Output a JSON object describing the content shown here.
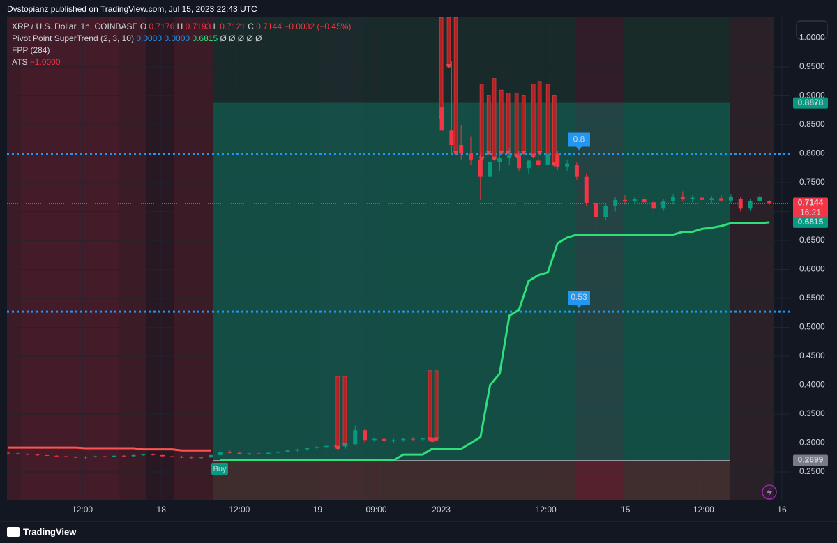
{
  "header": {
    "published": "Dvstopianz published on TradingView.com, Jul 15, 2023 22:43 UTC",
    "symbol": "XRP / U.S. Dollar, 1h, COINBASE",
    "o": "O",
    "h": "H",
    "l": "L",
    "c": "C",
    "change": "−0.0032 (−0.45%)",
    "indicator1": "Pivot Point SuperTrend (2, 3, 10)",
    "ind1_v1": "0.0000",
    "ind1_v2": "0.0000",
    "ind1_v3": "0.6815",
    "ind1_rest": "Ø Ø Ø Ø Ø",
    "indicator2": "FPP (284)",
    "indicator3": "ATS",
    "ind3_v": "−1.0000",
    "countdown": "16:21",
    "buy": "Buy",
    "footer": "TradingView"
  },
  "chart_data": {
    "type": "candlestick",
    "xlim": [
      -0.145,
      81.16
    ],
    "xticks": [
      {
        "value": 7.68,
        "label": "12:00"
      },
      {
        "value": 15.87,
        "label": "18"
      },
      {
        "value": 23.99,
        "label": "12:00"
      },
      {
        "value": 32.1,
        "label": "19"
      },
      {
        "value": 38.19,
        "label": "09:00"
      },
      {
        "value": 44.93,
        "label": "2023"
      },
      {
        "value": 55.8,
        "label": "12:00"
      },
      {
        "value": 64.06,
        "label": "15"
      },
      {
        "value": 72.17,
        "label": "12:00"
      },
      {
        "value": 80.29,
        "label": "16"
      }
    ],
    "ylim": [
      0.2006,
      1.0355
    ],
    "yticks": [
      {
        "value": 0.25,
        "label": "0.2500"
      },
      {
        "value": 0.3,
        "label": "0.3000"
      },
      {
        "value": 0.35,
        "label": "0.3500"
      },
      {
        "value": 0.4,
        "label": "0.4000"
      },
      {
        "value": 0.45,
        "label": "0.4500"
      },
      {
        "value": 0.5,
        "label": "0.5000"
      },
      {
        "value": 0.55,
        "label": "0.5500"
      },
      {
        "value": 0.6,
        "label": "0.6000"
      },
      {
        "value": 0.65,
        "label": "0.6500"
      },
      {
        "value": 0.7,
        "label": "0.7000"
      },
      {
        "value": 0.75,
        "label": "0.7500"
      },
      {
        "value": 0.8,
        "label": "0.8000"
      },
      {
        "value": 0.85,
        "label": "0.8500"
      },
      {
        "value": 0.9,
        "label": "0.9000"
      },
      {
        "value": 0.95,
        "label": "0.9500"
      },
      {
        "value": 1.0,
        "label": "1.0000"
      }
    ],
    "grid": true,
    "up_color": "#089981",
    "down_color": "#f23645",
    "ohlc": [
      [
        0.283,
        0.285,
        0.281,
        0.282
      ],
      [
        0.282,
        0.283,
        0.28,
        0.281
      ],
      [
        0.281,
        0.282,
        0.279,
        0.28
      ],
      [
        0.28,
        0.281,
        0.278,
        0.279
      ],
      [
        0.279,
        0.28,
        0.277,
        0.278
      ],
      [
        0.278,
        0.279,
        0.276,
        0.277
      ],
      [
        0.277,
        0.278,
        0.275,
        0.276
      ],
      [
        0.276,
        0.277,
        0.274,
        0.275
      ],
      [
        0.275,
        0.277,
        0.273,
        0.276
      ],
      [
        0.276,
        0.278,
        0.275,
        0.277
      ],
      [
        0.277,
        0.278,
        0.275,
        0.276
      ],
      [
        0.276,
        0.279,
        0.275,
        0.278
      ],
      [
        0.278,
        0.279,
        0.276,
        0.277
      ],
      [
        0.277,
        0.28,
        0.276,
        0.279
      ],
      [
        0.279,
        0.281,
        0.278,
        0.28
      ],
      [
        0.28,
        0.282,
        0.278,
        0.279
      ],
      [
        0.279,
        0.28,
        0.276,
        0.277
      ],
      [
        0.277,
        0.278,
        0.275,
        0.276
      ],
      [
        0.276,
        0.278,
        0.274,
        0.275
      ],
      [
        0.275,
        0.277,
        0.273,
        0.274
      ],
      [
        0.274,
        0.276,
        0.272,
        0.275
      ],
      [
        0.275,
        0.28,
        0.274,
        0.279
      ],
      [
        0.279,
        0.285,
        0.278,
        0.284
      ],
      [
        0.284,
        0.287,
        0.282,
        0.283
      ],
      [
        0.283,
        0.285,
        0.28,
        0.281
      ],
      [
        0.281,
        0.283,
        0.279,
        0.282
      ],
      [
        0.282,
        0.284,
        0.28,
        0.281
      ],
      [
        0.281,
        0.284,
        0.28,
        0.283
      ],
      [
        0.283,
        0.286,
        0.282,
        0.285
      ],
      [
        0.285,
        0.288,
        0.284,
        0.287
      ],
      [
        0.287,
        0.29,
        0.285,
        0.289
      ],
      [
        0.289,
        0.292,
        0.287,
        0.291
      ],
      [
        0.291,
        0.295,
        0.289,
        0.293
      ],
      [
        0.293,
        0.297,
        0.29,
        0.295
      ],
      [
        0.295,
        0.298,
        0.291,
        0.294
      ],
      [
        0.294,
        0.3,
        0.29,
        0.298
      ],
      [
        0.298,
        0.33,
        0.296,
        0.322
      ],
      [
        0.322,
        0.325,
        0.3,
        0.305
      ],
      [
        0.305,
        0.31,
        0.302,
        0.307
      ],
      [
        0.307,
        0.309,
        0.301,
        0.303
      ],
      [
        0.303,
        0.307,
        0.3,
        0.305
      ],
      [
        0.305,
        0.309,
        0.302,
        0.307
      ],
      [
        0.307,
        0.31,
        0.304,
        0.306
      ],
      [
        0.306,
        0.309,
        0.303,
        0.308
      ],
      [
        0.308,
        0.31,
        0.3,
        0.302
      ],
      [
        0.88,
        1.0,
        0.835,
        0.84
      ],
      [
        0.84,
        0.96,
        0.8,
        0.815
      ],
      [
        0.815,
        0.85,
        0.79,
        0.8
      ],
      [
        0.8,
        0.83,
        0.78,
        0.79
      ],
      [
        0.79,
        0.8,
        0.72,
        0.76
      ],
      [
        0.76,
        0.79,
        0.745,
        0.785
      ],
      [
        0.785,
        0.8,
        0.77,
        0.792
      ],
      [
        0.792,
        0.81,
        0.78,
        0.798
      ],
      [
        0.798,
        0.805,
        0.77,
        0.775
      ],
      [
        0.775,
        0.79,
        0.765,
        0.788
      ],
      [
        0.788,
        0.8,
        0.775,
        0.78
      ],
      [
        0.78,
        0.81,
        0.775,
        0.8
      ],
      [
        0.8,
        0.805,
        0.772,
        0.778
      ],
      [
        0.778,
        0.79,
        0.77,
        0.783
      ],
      [
        0.78,
        0.785,
        0.755,
        0.76
      ],
      [
        0.76,
        0.765,
        0.71,
        0.715
      ],
      [
        0.715,
        0.72,
        0.67,
        0.69
      ],
      [
        0.69,
        0.715,
        0.685,
        0.71
      ],
      [
        0.71,
        0.725,
        0.7,
        0.72
      ],
      [
        0.72,
        0.728,
        0.712,
        0.718
      ],
      [
        0.718,
        0.726,
        0.712,
        0.722
      ],
      [
        0.722,
        0.728,
        0.715,
        0.716
      ],
      [
        0.716,
        0.722,
        0.7,
        0.705
      ],
      [
        0.705,
        0.722,
        0.702,
        0.718
      ],
      [
        0.718,
        0.73,
        0.714,
        0.726
      ],
      [
        0.726,
        0.735,
        0.718,
        0.722
      ],
      [
        0.722,
        0.728,
        0.716,
        0.724
      ],
      [
        0.724,
        0.73,
        0.718,
        0.72
      ],
      [
        0.72,
        0.727,
        0.715,
        0.723
      ],
      [
        0.723,
        0.728,
        0.717,
        0.719
      ],
      [
        0.719,
        0.73,
        0.715,
        0.726
      ],
      [
        0.722,
        0.725,
        0.7,
        0.705
      ],
      [
        0.705,
        0.722,
        0.702,
        0.718
      ],
      [
        0.718,
        0.73,
        0.715,
        0.726
      ],
      [
        0.7176,
        0.7193,
        0.7121,
        0.7144
      ]
    ],
    "markers": [
      [
        34.2,
        0.415,
        0.29
      ],
      [
        34.93,
        0.415,
        0.295
      ],
      [
        43.77,
        0.425,
        0.305
      ],
      [
        44.42,
        0.425,
        0.305
      ],
      [
        44.93,
        1.035,
        0.86
      ],
      [
        45.72,
        1.035,
        0.95
      ],
      [
        46.45,
        1.035,
        0.8
      ],
      [
        49.13,
        0.92,
        0.79
      ],
      [
        49.86,
        0.9,
        0.8
      ],
      [
        50.43,
        0.93,
        0.79
      ],
      [
        51.16,
        0.91,
        0.8
      ],
      [
        51.88,
        0.905,
        0.8
      ],
      [
        52.75,
        0.905,
        0.795
      ],
      [
        53.48,
        0.9,
        0.8
      ],
      [
        54.49,
        0.92,
        0.795
      ],
      [
        55.14,
        0.925,
        0.8
      ],
      [
        56.01,
        0.92,
        0.795
      ],
      [
        56.67,
        0.9,
        0.78
      ]
    ],
    "marker_color": "#b22222",
    "series": [
      {
        "color": "#ff5252",
        "values": [
          0.292,
          0.292,
          0.292,
          0.292,
          0.292,
          0.292,
          0.292,
          0.292,
          0.291,
          0.291,
          0.291,
          0.291,
          0.291,
          0.291,
          0.289,
          0.289,
          0.289,
          0.289,
          0.287,
          0.287,
          0.287,
          0.287,
          null,
          null,
          null,
          null,
          null,
          null,
          null,
          null,
          null,
          null,
          null,
          null,
          null,
          null,
          null,
          null,
          null,
          null,
          null,
          null,
          null,
          null,
          null,
          null,
          null,
          null,
          null,
          null,
          null,
          null,
          null,
          null,
          null,
          null,
          null,
          null,
          null,
          null,
          null,
          null,
          null,
          null,
          null,
          null,
          null,
          null,
          null,
          null,
          null,
          null,
          null,
          null,
          null,
          null,
          null,
          null,
          null,
          null
        ]
      },
      {
        "color": "#2fe07a",
        "values": [
          null,
          null,
          null,
          null,
          null,
          null,
          null,
          null,
          null,
          null,
          null,
          null,
          null,
          null,
          null,
          null,
          null,
          null,
          null,
          null,
          null,
          null,
          0.27,
          0.27,
          0.27,
          0.27,
          0.27,
          0.27,
          0.27,
          0.27,
          0.27,
          0.27,
          0.27,
          0.27,
          0.27,
          0.27,
          0.27,
          0.27,
          0.27,
          0.27,
          0.27,
          0.28,
          0.28,
          0.28,
          0.29,
          0.29,
          0.29,
          0.29,
          0.3,
          0.31,
          0.4,
          0.42,
          0.52,
          0.53,
          0.58,
          0.59,
          0.595,
          0.645,
          0.655,
          0.66,
          0.66,
          0.66,
          0.66,
          0.66,
          0.66,
          0.66,
          0.66,
          0.66,
          0.66,
          0.66,
          0.665,
          0.665,
          0.67,
          0.672,
          0.675,
          0.68,
          0.68,
          0.68,
          0.68,
          0.6815
        ]
      }
    ],
    "levels": [
      {
        "value": 0.8,
        "label": "0.8"
      },
      {
        "value": 0.527,
        "label": "0.53"
      }
    ],
    "level_color": "#2196f3",
    "position": {
      "entry": 0.2699,
      "target": 0.8878
    }
  }
}
